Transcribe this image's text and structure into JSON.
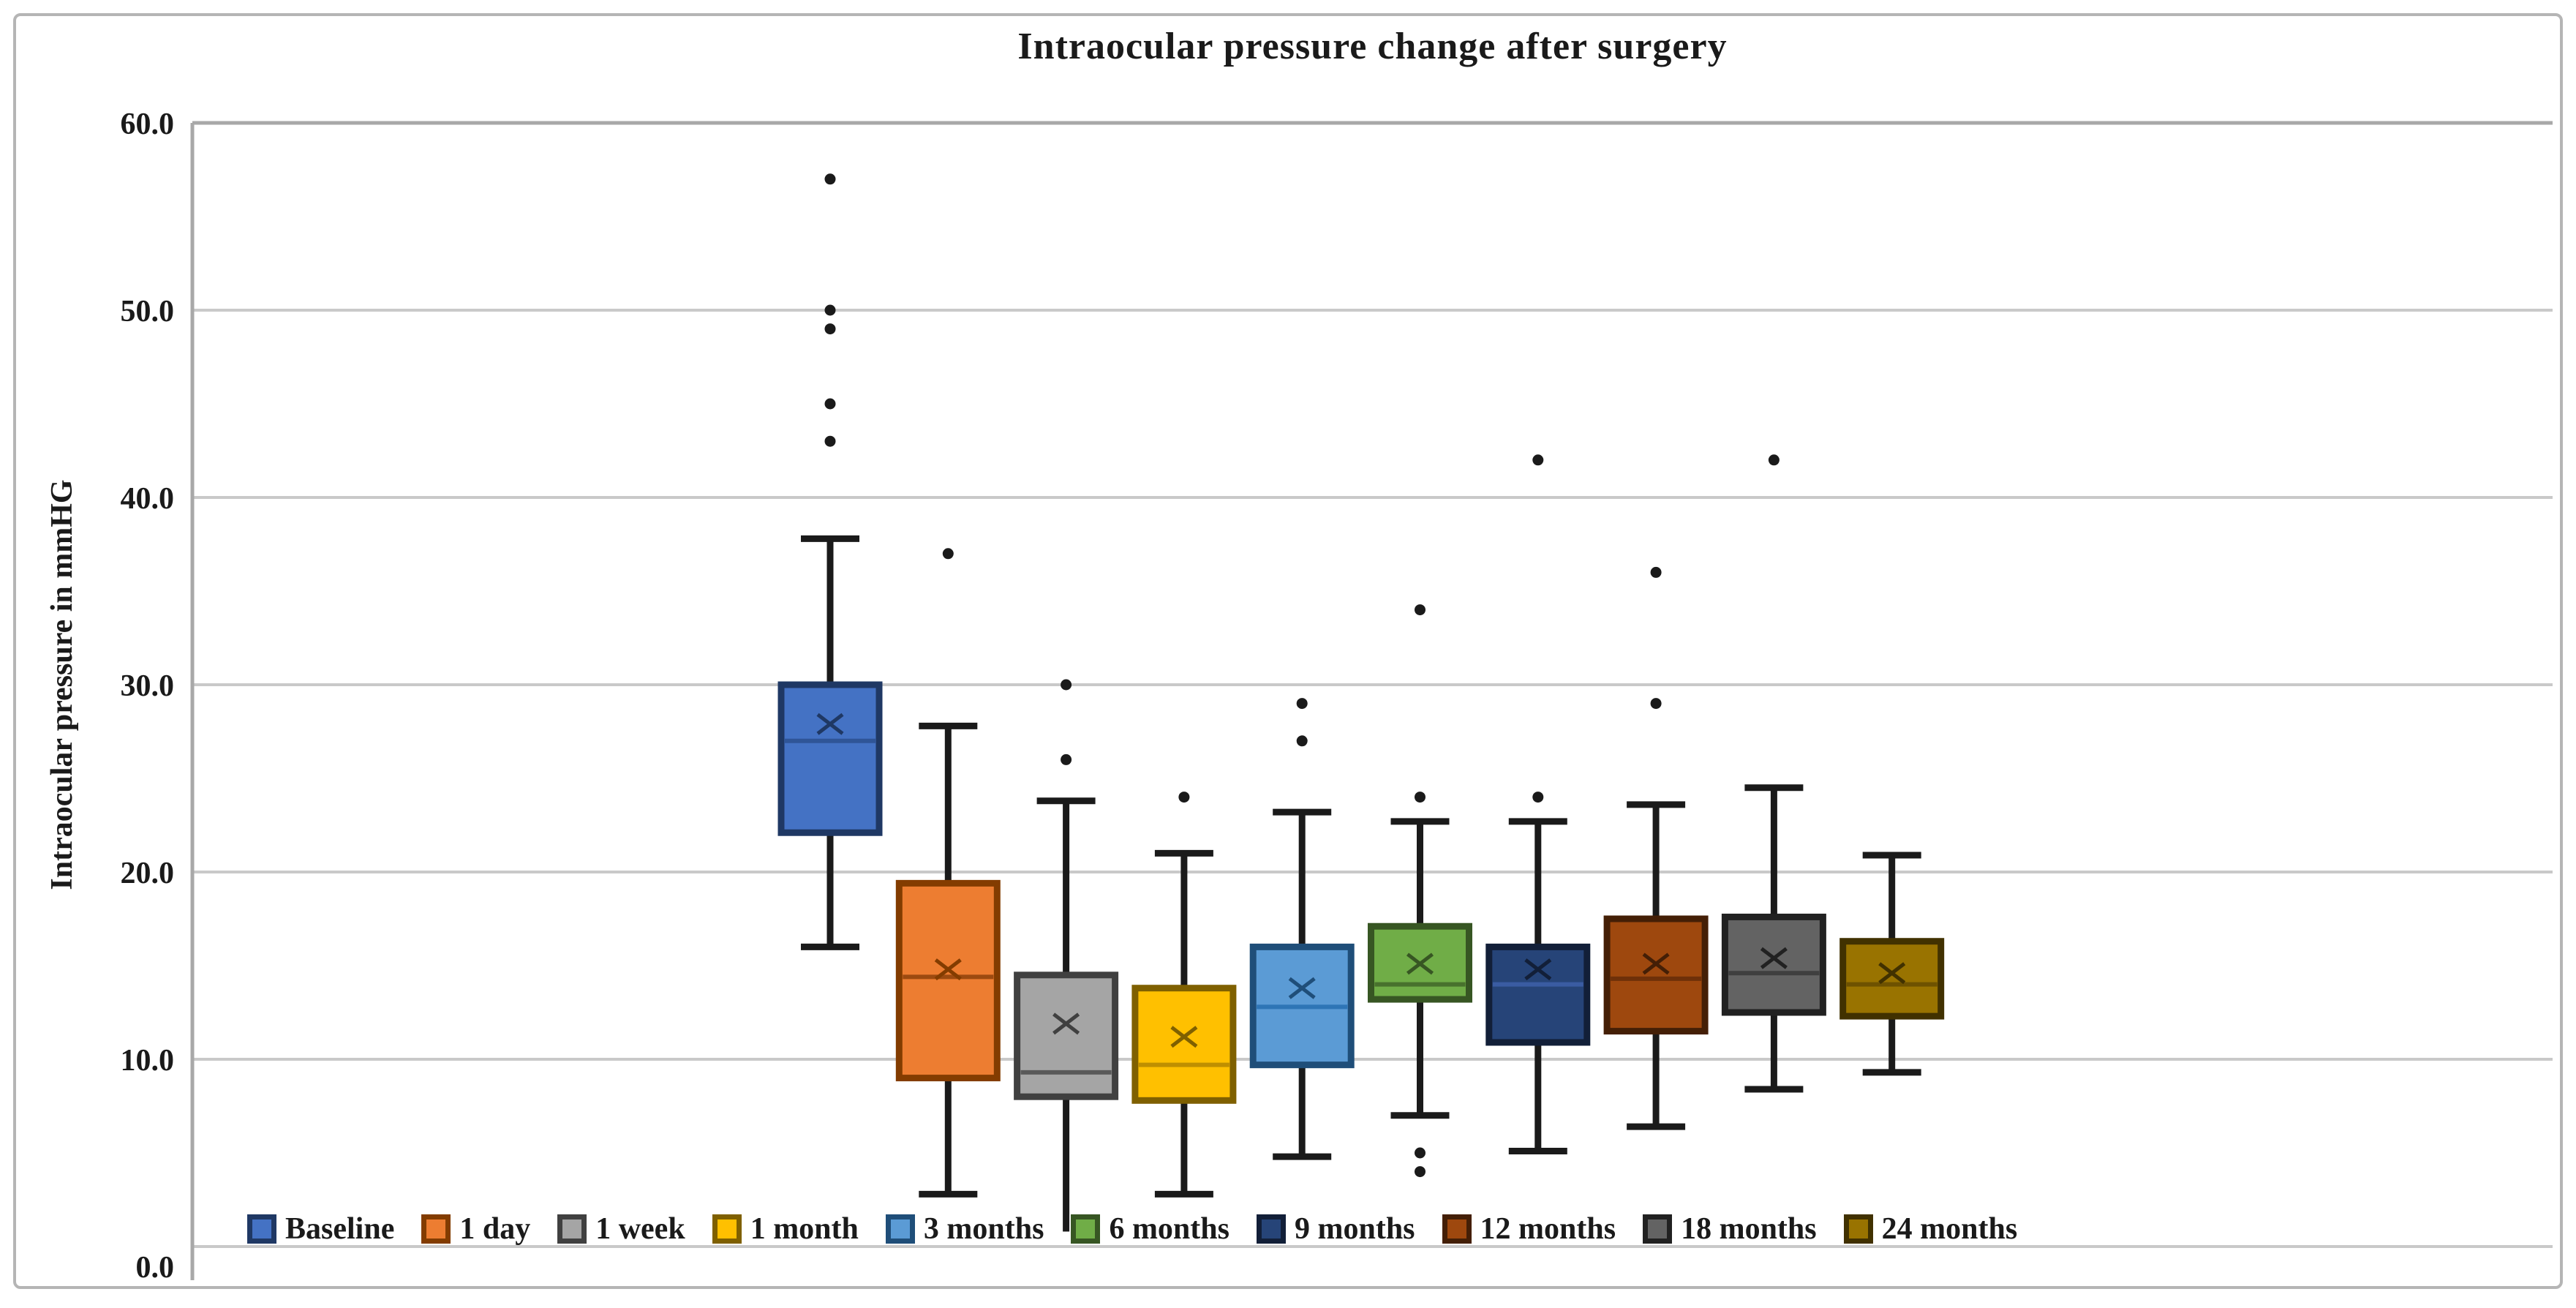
{
  "chart": {
    "title": "Intraocular pressure change after surgery",
    "y_axis": {
      "title": "Intraocular pressure in mmHG"
    }
  },
  "chart_data": {
    "type": "box",
    "title": "Intraocular pressure change after surgery",
    "xlabel": "",
    "ylabel": "Intraocular pressure in mmHG",
    "ylim": [
      0,
      60
    ],
    "grid": true,
    "legend_position": "bottom",
    "y_ticks": [
      {
        "value": 60,
        "label": "60.0"
      },
      {
        "value": 50,
        "label": "50.0"
      },
      {
        "value": 40,
        "label": "40.0"
      },
      {
        "value": 30,
        "label": "30.0"
      },
      {
        "value": 20,
        "label": "20.0"
      },
      {
        "value": 10,
        "label": "10.0"
      },
      {
        "value": 0,
        "label": "0.0"
      }
    ],
    "series": [
      {
        "name": "Baseline",
        "fill": "#4472C4",
        "border": "#1F3864",
        "median_color": "#2f5597",
        "min": 16,
        "q1": 22.1,
        "median": 27,
        "mean": 27.9,
        "q3": 30,
        "max": 37.8,
        "outliers": [
          43,
          45,
          49,
          50,
          57
        ],
        "cap_min": true,
        "cap_max": true
      },
      {
        "name": "1 day",
        "fill": "#ED7D31",
        "border": "#833C00",
        "median_color": "#9c4a10",
        "min": 2.8,
        "q1": 9,
        "median": 14.4,
        "mean": 14.8,
        "q3": 19.4,
        "max": 27.8,
        "outliers": [
          37
        ],
        "cap_min": true,
        "cap_max": true
      },
      {
        "name": "1 week",
        "fill": "#A5A5A5",
        "border": "#404040",
        "median_color": "#595959",
        "min": 0.8,
        "q1": 8,
        "median": 9.3,
        "mean": 11.9,
        "q3": 14.5,
        "max": 23.8,
        "outliers": [
          26,
          30
        ],
        "cap_min": false,
        "cap_max": true
      },
      {
        "name": "1 month",
        "fill": "#FFC000",
        "border": "#7F6000",
        "median_color": "#bf8f00",
        "min": 2.8,
        "q1": 7.8,
        "median": 9.7,
        "mean": 11.2,
        "q3": 13.8,
        "max": 21,
        "outliers": [
          24
        ],
        "cap_min": true,
        "cap_max": true
      },
      {
        "name": "3 months",
        "fill": "#5B9BD5",
        "border": "#1F4E79",
        "median_color": "#2e75b6",
        "min": 4.8,
        "q1": 9.7,
        "median": 12.8,
        "mean": 13.8,
        "q3": 16,
        "max": 23.2,
        "outliers": [
          27,
          29
        ],
        "cap_min": true,
        "cap_max": true
      },
      {
        "name": "6 months",
        "fill": "#70AD47",
        "border": "#375623",
        "median_color": "#48712d",
        "min": 7,
        "q1": 13.2,
        "median": 14,
        "mean": 15.1,
        "q3": 17.1,
        "max": 22.7,
        "outliers": [
          4,
          5,
          24,
          34
        ],
        "cap_min": true,
        "cap_max": true
      },
      {
        "name": "9 months",
        "fill": "#264478",
        "border": "#121f38",
        "median_color": "#3a5ca2",
        "min": 5.1,
        "q1": 10.9,
        "median": 14,
        "mean": 14.8,
        "q3": 16,
        "max": 22.7,
        "outliers": [
          24,
          42
        ],
        "cap_min": true,
        "cap_max": true
      },
      {
        "name": "12 months",
        "fill": "#9E480E",
        "border": "#441F06",
        "median_color": "#6e3009",
        "min": 6.4,
        "q1": 11.5,
        "median": 14.3,
        "mean": 15.1,
        "q3": 17.5,
        "max": 23.6,
        "outliers": [
          29,
          36
        ],
        "cap_min": true,
        "cap_max": true
      },
      {
        "name": "18 months",
        "fill": "#636363",
        "border": "#212121",
        "median_color": "#3f3f3f",
        "min": 8.4,
        "q1": 12.5,
        "median": 14.6,
        "mean": 15.4,
        "q3": 17.6,
        "max": 24.5,
        "outliers": [
          42
        ],
        "cap_min": true,
        "cap_max": true
      },
      {
        "name": "24 months",
        "fill": "#997300",
        "border": "#413100",
        "median_color": "#6e5200",
        "min": 9.3,
        "q1": 12.3,
        "median": 14,
        "mean": 14.6,
        "q3": 16.3,
        "max": 20.9,
        "outliers": [],
        "cap_min": true,
        "cap_max": true
      }
    ],
    "colors": {
      "grid_line": "#c9c9c9",
      "axis_line": "#a8a8a8",
      "whisker": "#1a1a1a",
      "outlier": "#1a1a1a",
      "text": "#1a1a1a"
    }
  }
}
